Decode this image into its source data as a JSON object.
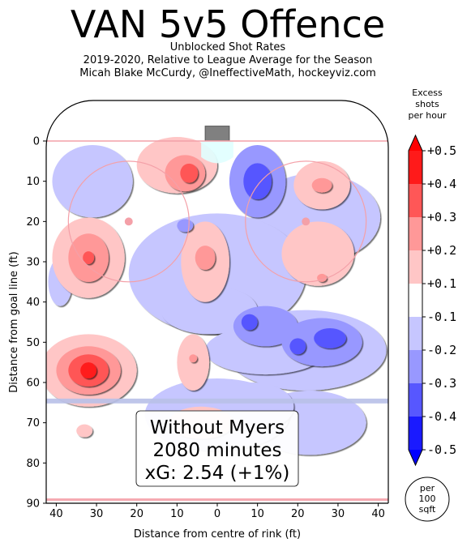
{
  "chart_data": {
    "type": "heatmap",
    "title": "VAN 5v5 Offence",
    "subtitles": [
      "Unblocked Shot Rates",
      "2019-2020, Relative to League Average for the Season",
      "Micah Blake McCurdy, @IneffectiveMath, hockeyviz.com"
    ],
    "xlabel": "Distance from centre of rink (ft)",
    "ylabel": "Distance from goal line (ft)",
    "xlim": [
      -42.5,
      42.5
    ],
    "ylim": [
      0,
      90
    ],
    "x_ticks": [
      -40,
      -30,
      -20,
      -10,
      0,
      10,
      20,
      30,
      40
    ],
    "x_tick_labels": [
      "40",
      "30",
      "20",
      "10",
      "0",
      "10",
      "20",
      "30",
      "40"
    ],
    "y_ticks": [
      0,
      10,
      20,
      30,
      40,
      50,
      60,
      70,
      80,
      90
    ],
    "y_tick_labels": [
      "0",
      "10",
      "20",
      "30",
      "40",
      "50",
      "60",
      "70",
      "80",
      "90"
    ],
    "colorbar": {
      "title": [
        "Excess",
        "shots",
        "per hour"
      ],
      "levels": [
        -0.5,
        -0.4,
        -0.3,
        -0.2,
        -0.1,
        0.1,
        0.2,
        0.3,
        0.4,
        0.5
      ],
      "tick_labels": [
        "-0.5",
        "-0.4",
        "-0.3",
        "-0.2",
        "-0.1",
        "+0.1",
        "+0.2",
        "+0.3",
        "+0.4",
        "+0.5"
      ],
      "colors": [
        "#1a1aff",
        "#5757ff",
        "#9898ff",
        "#c6c6ff",
        "#ffffff",
        "#ffc6c6",
        "#ff9898",
        "#ff5757",
        "#ff1a1a"
      ],
      "extend_low_color": "#0000ff",
      "extend_high_color": "#ff0000"
    },
    "unit_badge": [
      "per",
      "100",
      "sqft"
    ],
    "annotation": [
      "Without Myers",
      "2080 minutes",
      "xG: 2.54 (+1%)"
    ],
    "regions": [
      {
        "x": 24.5,
        "y": 19,
        "rx": 16,
        "ry": 11,
        "level": -0.15
      },
      {
        "x": 0,
        "y": 33,
        "rx": 22,
        "ry": 15,
        "level": -0.15
      },
      {
        "x": -2,
        "y": 42,
        "rx": 12,
        "ry": 6,
        "level": -0.15
      },
      {
        "x": 22,
        "y": 52,
        "rx": 20,
        "ry": 10,
        "level": -0.15
      },
      {
        "x": 23,
        "y": 70,
        "rx": 14,
        "ry": 8,
        "level": -0.15
      },
      {
        "x": 0,
        "y": 68,
        "rx": 18,
        "ry": 9,
        "level": -0.15
      },
      {
        "x": 9,
        "y": 66,
        "rx": 10,
        "ry": 6,
        "level": -0.15
      },
      {
        "x": 12,
        "y": 52,
        "rx": 15,
        "ry": 6,
        "level": -0.15
      },
      {
        "x": -31,
        "y": 10,
        "rx": 10,
        "ry": 9,
        "level": -0.15
      },
      {
        "x": -39,
        "y": 35,
        "rx": 3,
        "ry": 6,
        "level": -0.15
      },
      {
        "x": 10,
        "y": 10,
        "rx": 7,
        "ry": 9,
        "level": -0.25
      },
      {
        "x": 10,
        "y": 10,
        "rx": 3.5,
        "ry": 4.5,
        "level": -0.35
      },
      {
        "x": 12,
        "y": 46,
        "rx": 8,
        "ry": 5,
        "level": -0.25
      },
      {
        "x": 8,
        "y": 45,
        "rx": 2,
        "ry": 2,
        "level": -0.35
      },
      {
        "x": 26,
        "y": 50,
        "rx": 10,
        "ry": 6,
        "level": -0.25
      },
      {
        "x": 28,
        "y": 49,
        "rx": 4,
        "ry": 2.5,
        "level": -0.35
      },
      {
        "x": 20,
        "y": 51,
        "rx": 2,
        "ry": 2,
        "level": -0.35
      },
      {
        "x": -8,
        "y": 21,
        "rx": 2,
        "ry": 1.6,
        "level": -0.25
      },
      {
        "x": -10,
        "y": 6,
        "rx": 10,
        "ry": 7,
        "level": 0.15
      },
      {
        "x": -8,
        "y": 8,
        "rx": 5,
        "ry": 4.5,
        "level": 0.25
      },
      {
        "x": -7,
        "y": 8,
        "rx": 2.2,
        "ry": 2.4,
        "level": 0.35
      },
      {
        "x": 26,
        "y": 11,
        "rx": 7,
        "ry": 6,
        "level": 0.15
      },
      {
        "x": 26,
        "y": 11,
        "rx": 2.5,
        "ry": 1.8,
        "level": 0.25
      },
      {
        "x": -32,
        "y": 29,
        "rx": 9,
        "ry": 10,
        "level": 0.15
      },
      {
        "x": -32,
        "y": 29,
        "rx": 5,
        "ry": 6,
        "level": 0.25
      },
      {
        "x": -32,
        "y": 29,
        "rx": 1.4,
        "ry": 1.6,
        "level": 0.35
      },
      {
        "x": -3,
        "y": 30,
        "rx": 6,
        "ry": 10,
        "level": 0.15
      },
      {
        "x": -3,
        "y": 29,
        "rx": 2.5,
        "ry": 3,
        "level": 0.25
      },
      {
        "x": 25,
        "y": 28,
        "rx": 9,
        "ry": 8,
        "level": 0.15
      },
      {
        "x": 26,
        "y": 34,
        "rx": 1.2,
        "ry": 1,
        "level": 0.25
      },
      {
        "x": -32,
        "y": 57,
        "rx": 12,
        "ry": 9,
        "level": 0.15
      },
      {
        "x": -32,
        "y": 57,
        "rx": 8,
        "ry": 6,
        "level": 0.25
      },
      {
        "x": -32,
        "y": 57,
        "rx": 5,
        "ry": 4,
        "level": 0.35
      },
      {
        "x": -32,
        "y": 57,
        "rx": 2,
        "ry": 2,
        "level": 0.45
      },
      {
        "x": -6,
        "y": 55,
        "rx": 4,
        "ry": 7,
        "level": 0.15
      },
      {
        "x": -6,
        "y": 54,
        "rx": 1,
        "ry": 1,
        "level": 0.25
      },
      {
        "x": -4,
        "y": 70,
        "rx": 8,
        "ry": 4,
        "level": 0.15
      },
      {
        "x": -33,
        "y": 72,
        "rx": 2,
        "ry": 1.6,
        "level": 0.15
      }
    ]
  }
}
